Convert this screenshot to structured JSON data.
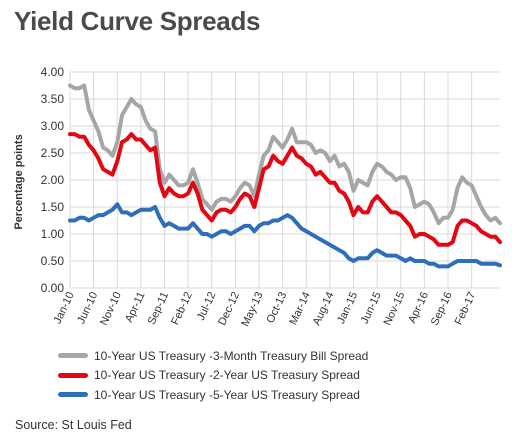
{
  "title": "Yield Curve Spreads",
  "source": "Source: St Louis Fed",
  "colors": {
    "three_month": "#a6a6a6",
    "two_year": "#e30613",
    "five_year": "#2f6fba",
    "grid": "#d9d9d9",
    "axis_text": "#333333"
  },
  "chart_data": {
    "type": "line",
    "title": "Yield Curve Spreads",
    "ylabel": "Percentage points",
    "xlabel": "",
    "ylim": [
      0,
      4.0
    ],
    "yticks": [
      "0.00",
      "0.50",
      "1.00",
      "1.50",
      "2.00",
      "2.50",
      "3.00",
      "3.50",
      "4.00"
    ],
    "xticks": [
      "Jan-10",
      "Jun-10",
      "Nov-10",
      "Apr-11",
      "Sep-11",
      "Feb-12",
      "Jul-12",
      "Dec-12",
      "May-13",
      "Oct-13",
      "Mar-14",
      "Aug-14",
      "Jan-15",
      "Jun-15",
      "Nov-15",
      "Apr-16",
      "Sep-16",
      "Feb-17"
    ],
    "grid": true,
    "legend_position": "bottom",
    "x_range": [
      "Jan-10",
      "Aug-17"
    ],
    "series": [
      {
        "name": "10-Year US Treasury -3-Month Treasury Bill Spread",
        "points": [
          [
            "Jan-10",
            3.75
          ],
          [
            "Feb-10",
            3.7
          ],
          [
            "Mar-10",
            3.7
          ],
          [
            "Apr-10",
            3.75
          ],
          [
            "May-10",
            3.3
          ],
          [
            "Jun-10",
            3.1
          ],
          [
            "Jul-10",
            2.9
          ],
          [
            "Aug-10",
            2.6
          ],
          [
            "Sep-10",
            2.55
          ],
          [
            "Oct-10",
            2.45
          ],
          [
            "Nov-10",
            2.7
          ],
          [
            "Dec-10",
            3.2
          ],
          [
            "Jan-11",
            3.35
          ],
          [
            "Feb-11",
            3.5
          ],
          [
            "Mar-11",
            3.4
          ],
          [
            "Apr-11",
            3.35
          ],
          [
            "May-11",
            3.1
          ],
          [
            "Jun-11",
            2.95
          ],
          [
            "Jul-11",
            2.9
          ],
          [
            "Aug-11",
            2.2
          ],
          [
            "Sep-11",
            1.95
          ],
          [
            "Oct-11",
            2.1
          ],
          [
            "Nov-11",
            2.0
          ],
          [
            "Dec-11",
            1.9
          ],
          [
            "Jan-12",
            1.9
          ],
          [
            "Feb-12",
            1.95
          ],
          [
            "Mar-12",
            2.2
          ],
          [
            "Apr-12",
            1.95
          ],
          [
            "May-12",
            1.65
          ],
          [
            "Jun-12",
            1.55
          ],
          [
            "Jul-12",
            1.45
          ],
          [
            "Aug-12",
            1.6
          ],
          [
            "Sep-12",
            1.65
          ],
          [
            "Oct-12",
            1.65
          ],
          [
            "Nov-12",
            1.6
          ],
          [
            "Dec-12",
            1.7
          ],
          [
            "Jan-13",
            1.85
          ],
          [
            "Feb-13",
            1.95
          ],
          [
            "Mar-13",
            1.9
          ],
          [
            "Apr-13",
            1.7
          ],
          [
            "May-13",
            2.1
          ],
          [
            "Jun-13",
            2.45
          ],
          [
            "Jul-13",
            2.55
          ],
          [
            "Aug-13",
            2.8
          ],
          [
            "Sep-13",
            2.7
          ],
          [
            "Oct-13",
            2.6
          ],
          [
            "Nov-13",
            2.75
          ],
          [
            "Dec-13",
            2.95
          ],
          [
            "Jan-14",
            2.7
          ],
          [
            "Feb-14",
            2.7
          ],
          [
            "Mar-14",
            2.7
          ],
          [
            "Apr-14",
            2.65
          ],
          [
            "May-14",
            2.5
          ],
          [
            "Jun-14",
            2.55
          ],
          [
            "Jul-14",
            2.5
          ],
          [
            "Aug-14",
            2.35
          ],
          [
            "Sep-14",
            2.45
          ],
          [
            "Oct-14",
            2.25
          ],
          [
            "Nov-14",
            2.3
          ],
          [
            "Dec-14",
            2.15
          ],
          [
            "Jan-15",
            1.8
          ],
          [
            "Feb-15",
            2.0
          ],
          [
            "Mar-15",
            1.95
          ],
          [
            "Apr-15",
            1.9
          ],
          [
            "May-15",
            2.15
          ],
          [
            "Jun-15",
            2.3
          ],
          [
            "Jul-15",
            2.25
          ],
          [
            "Aug-15",
            2.15
          ],
          [
            "Sep-15",
            2.1
          ],
          [
            "Oct-15",
            2.0
          ],
          [
            "Nov-15",
            2.05
          ],
          [
            "Dec-15",
            2.05
          ],
          [
            "Jan-16",
            1.85
          ],
          [
            "Feb-16",
            1.5
          ],
          [
            "Mar-16",
            1.55
          ],
          [
            "Apr-16",
            1.6
          ],
          [
            "May-16",
            1.55
          ],
          [
            "Jun-16",
            1.4
          ],
          [
            "Jul-16",
            1.2
          ],
          [
            "Aug-16",
            1.3
          ],
          [
            "Sep-16",
            1.3
          ],
          [
            "Oct-16",
            1.45
          ],
          [
            "Nov-16",
            1.85
          ],
          [
            "Dec-16",
            2.05
          ],
          [
            "Jan-17",
            1.95
          ],
          [
            "Feb-17",
            1.9
          ],
          [
            "Mar-17",
            1.7
          ],
          [
            "Apr-17",
            1.5
          ],
          [
            "May-17",
            1.35
          ],
          [
            "Jun-17",
            1.25
          ],
          [
            "Jul-17",
            1.3
          ],
          [
            "Aug-17",
            1.2
          ]
        ]
      },
      {
        "name": "10-Year US Treasury -2-Year US Treasury Spread",
        "points": [
          [
            "Jan-10",
            2.85
          ],
          [
            "Feb-10",
            2.85
          ],
          [
            "Mar-10",
            2.8
          ],
          [
            "Apr-10",
            2.8
          ],
          [
            "May-10",
            2.65
          ],
          [
            "Jun-10",
            2.55
          ],
          [
            "Jul-10",
            2.4
          ],
          [
            "Aug-10",
            2.2
          ],
          [
            "Sep-10",
            2.15
          ],
          [
            "Oct-10",
            2.1
          ],
          [
            "Nov-10",
            2.35
          ],
          [
            "Dec-10",
            2.7
          ],
          [
            "Jan-11",
            2.75
          ],
          [
            "Feb-11",
            2.85
          ],
          [
            "Mar-11",
            2.75
          ],
          [
            "Apr-11",
            2.75
          ],
          [
            "May-11",
            2.65
          ],
          [
            "Jun-11",
            2.55
          ],
          [
            "Jul-11",
            2.6
          ],
          [
            "Aug-11",
            1.95
          ],
          [
            "Sep-11",
            1.7
          ],
          [
            "Oct-11",
            1.85
          ],
          [
            "Nov-11",
            1.75
          ],
          [
            "Dec-11",
            1.7
          ],
          [
            "Jan-12",
            1.7
          ],
          [
            "Feb-12",
            1.75
          ],
          [
            "Mar-12",
            1.95
          ],
          [
            "Apr-12",
            1.75
          ],
          [
            "May-12",
            1.45
          ],
          [
            "Jun-12",
            1.35
          ],
          [
            "Jul-12",
            1.25
          ],
          [
            "Aug-12",
            1.4
          ],
          [
            "Sep-12",
            1.45
          ],
          [
            "Oct-12",
            1.45
          ],
          [
            "Nov-12",
            1.4
          ],
          [
            "Dec-12",
            1.5
          ],
          [
            "Jan-13",
            1.65
          ],
          [
            "Feb-13",
            1.75
          ],
          [
            "Mar-13",
            1.7
          ],
          [
            "Apr-13",
            1.5
          ],
          [
            "May-13",
            1.85
          ],
          [
            "Jun-13",
            2.2
          ],
          [
            "Jul-13",
            2.25
          ],
          [
            "Aug-13",
            2.45
          ],
          [
            "Sep-13",
            2.35
          ],
          [
            "Oct-13",
            2.3
          ],
          [
            "Nov-13",
            2.45
          ],
          [
            "Dec-13",
            2.6
          ],
          [
            "Jan-14",
            2.45
          ],
          [
            "Feb-14",
            2.4
          ],
          [
            "Mar-14",
            2.3
          ],
          [
            "Apr-14",
            2.25
          ],
          [
            "May-14",
            2.1
          ],
          [
            "Jun-14",
            2.15
          ],
          [
            "Jul-14",
            2.05
          ],
          [
            "Aug-14",
            1.95
          ],
          [
            "Sep-14",
            1.95
          ],
          [
            "Oct-14",
            1.8
          ],
          [
            "Nov-14",
            1.75
          ],
          [
            "Dec-14",
            1.6
          ],
          [
            "Jan-15",
            1.35
          ],
          [
            "Feb-15",
            1.5
          ],
          [
            "Mar-15",
            1.4
          ],
          [
            "Apr-15",
            1.4
          ],
          [
            "May-15",
            1.6
          ],
          [
            "Jun-15",
            1.7
          ],
          [
            "Jul-15",
            1.6
          ],
          [
            "Aug-15",
            1.5
          ],
          [
            "Sep-15",
            1.4
          ],
          [
            "Oct-15",
            1.4
          ],
          [
            "Nov-15",
            1.35
          ],
          [
            "Dec-15",
            1.25
          ],
          [
            "Jan-16",
            1.15
          ],
          [
            "Feb-16",
            0.95
          ],
          [
            "Mar-16",
            1.0
          ],
          [
            "Apr-16",
            1.0
          ],
          [
            "May-16",
            0.95
          ],
          [
            "Jun-16",
            0.9
          ],
          [
            "Jul-16",
            0.8
          ],
          [
            "Aug-16",
            0.8
          ],
          [
            "Sep-16",
            0.8
          ],
          [
            "Oct-16",
            0.85
          ],
          [
            "Nov-16",
            1.15
          ],
          [
            "Dec-16",
            1.25
          ],
          [
            "Jan-17",
            1.25
          ],
          [
            "Feb-17",
            1.2
          ],
          [
            "Mar-17",
            1.15
          ],
          [
            "Apr-17",
            1.05
          ],
          [
            "May-17",
            1.0
          ],
          [
            "Jun-17",
            0.95
          ],
          [
            "Jul-17",
            0.95
          ],
          [
            "Aug-17",
            0.85
          ]
        ]
      },
      {
        "name": "10-Year US Treasury -5-Year US Treasury Spread",
        "points": [
          [
            "Jan-10",
            1.25
          ],
          [
            "Feb-10",
            1.25
          ],
          [
            "Mar-10",
            1.3
          ],
          [
            "Apr-10",
            1.3
          ],
          [
            "May-10",
            1.25
          ],
          [
            "Jun-10",
            1.3
          ],
          [
            "Jul-10",
            1.35
          ],
          [
            "Aug-10",
            1.35
          ],
          [
            "Sep-10",
            1.4
          ],
          [
            "Oct-10",
            1.45
          ],
          [
            "Nov-10",
            1.55
          ],
          [
            "Dec-10",
            1.4
          ],
          [
            "Jan-11",
            1.4
          ],
          [
            "Feb-11",
            1.35
          ],
          [
            "Mar-11",
            1.4
          ],
          [
            "Apr-11",
            1.45
          ],
          [
            "May-11",
            1.45
          ],
          [
            "Jun-11",
            1.45
          ],
          [
            "Jul-11",
            1.5
          ],
          [
            "Aug-11",
            1.3
          ],
          [
            "Sep-11",
            1.15
          ],
          [
            "Oct-11",
            1.2
          ],
          [
            "Nov-11",
            1.15
          ],
          [
            "Dec-11",
            1.1
          ],
          [
            "Jan-12",
            1.1
          ],
          [
            "Feb-12",
            1.1
          ],
          [
            "Mar-12",
            1.2
          ],
          [
            "Apr-12",
            1.1
          ],
          [
            "May-12",
            1.0
          ],
          [
            "Jun-12",
            1.0
          ],
          [
            "Jul-12",
            0.95
          ],
          [
            "Aug-12",
            1.0
          ],
          [
            "Sep-12",
            1.05
          ],
          [
            "Oct-12",
            1.05
          ],
          [
            "Nov-12",
            1.0
          ],
          [
            "Dec-12",
            1.05
          ],
          [
            "Jan-13",
            1.1
          ],
          [
            "Feb-13",
            1.15
          ],
          [
            "Mar-13",
            1.15
          ],
          [
            "Apr-13",
            1.05
          ],
          [
            "May-13",
            1.15
          ],
          [
            "Jun-13",
            1.2
          ],
          [
            "Jul-13",
            1.2
          ],
          [
            "Aug-13",
            1.25
          ],
          [
            "Sep-13",
            1.25
          ],
          [
            "Oct-13",
            1.3
          ],
          [
            "Nov-13",
            1.35
          ],
          [
            "Dec-13",
            1.3
          ],
          [
            "Jan-14",
            1.2
          ],
          [
            "Feb-14",
            1.1
          ],
          [
            "Mar-14",
            1.05
          ],
          [
            "Apr-14",
            1.0
          ],
          [
            "May-14",
            0.95
          ],
          [
            "Jun-14",
            0.9
          ],
          [
            "Jul-14",
            0.85
          ],
          [
            "Aug-14",
            0.8
          ],
          [
            "Sep-14",
            0.75
          ],
          [
            "Oct-14",
            0.7
          ],
          [
            "Nov-14",
            0.65
          ],
          [
            "Dec-14",
            0.55
          ],
          [
            "Jan-15",
            0.5
          ],
          [
            "Feb-15",
            0.55
          ],
          [
            "Mar-15",
            0.55
          ],
          [
            "Apr-15",
            0.55
          ],
          [
            "May-15",
            0.65
          ],
          [
            "Jun-15",
            0.7
          ],
          [
            "Jul-15",
            0.65
          ],
          [
            "Aug-15",
            0.6
          ],
          [
            "Sep-15",
            0.6
          ],
          [
            "Oct-15",
            0.6
          ],
          [
            "Nov-15",
            0.55
          ],
          [
            "Dec-15",
            0.5
          ],
          [
            "Jan-16",
            0.55
          ],
          [
            "Feb-16",
            0.5
          ],
          [
            "Mar-16",
            0.5
          ],
          [
            "Apr-16",
            0.5
          ],
          [
            "May-16",
            0.45
          ],
          [
            "Jun-16",
            0.45
          ],
          [
            "Jul-16",
            0.4
          ],
          [
            "Aug-16",
            0.4
          ],
          [
            "Sep-16",
            0.4
          ],
          [
            "Oct-16",
            0.45
          ],
          [
            "Nov-16",
            0.5
          ],
          [
            "Dec-16",
            0.5
          ],
          [
            "Jan-17",
            0.5
          ],
          [
            "Feb-17",
            0.5
          ],
          [
            "Mar-17",
            0.5
          ],
          [
            "Apr-17",
            0.45
          ],
          [
            "May-17",
            0.45
          ],
          [
            "Jun-17",
            0.45
          ],
          [
            "Jul-17",
            0.45
          ],
          [
            "Aug-17",
            0.42
          ]
        ]
      }
    ]
  }
}
